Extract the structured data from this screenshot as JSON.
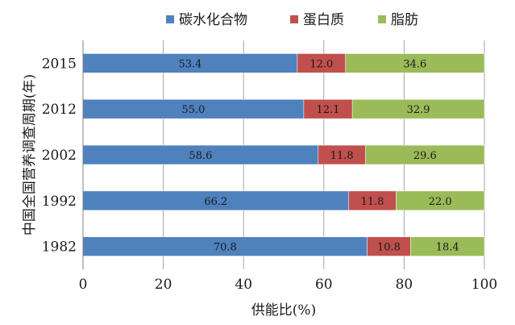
{
  "chart_data": {
    "type": "bar",
    "orientation": "horizontal",
    "stacked": true,
    "categories": [
      "2015",
      "2012",
      "2002",
      "1992",
      "1982"
    ],
    "series": [
      {
        "name": "碳水化合物",
        "color": "#4f81bd",
        "values": [
          53.4,
          55.0,
          58.6,
          66.2,
          70.8
        ]
      },
      {
        "name": "蛋白质",
        "color": "#c0504d",
        "values": [
          12.0,
          12.1,
          11.8,
          11.8,
          10.8
        ]
      },
      {
        "name": "脂肪",
        "color": "#9bbb59",
        "values": [
          34.6,
          32.9,
          29.6,
          22.0,
          18.4
        ]
      }
    ],
    "value_labels": [
      [
        "53.4",
        "12.0",
        "34.6"
      ],
      [
        "55.0",
        "12.1",
        "32.9"
      ],
      [
        "58.6",
        "11.8",
        "29.6"
      ],
      [
        "66.2",
        "11.8",
        "22.0"
      ],
      [
        "70.8",
        "10.8",
        "18.4"
      ]
    ],
    "xlabel": "供能比(%)",
    "ylabel": "中国全国营养调查周期(年)",
    "xlim": [
      0,
      100
    ],
    "xticks": [
      "0",
      "20",
      "40",
      "60",
      "80",
      "100"
    ],
    "grid": true,
    "legend_position": "top"
  }
}
